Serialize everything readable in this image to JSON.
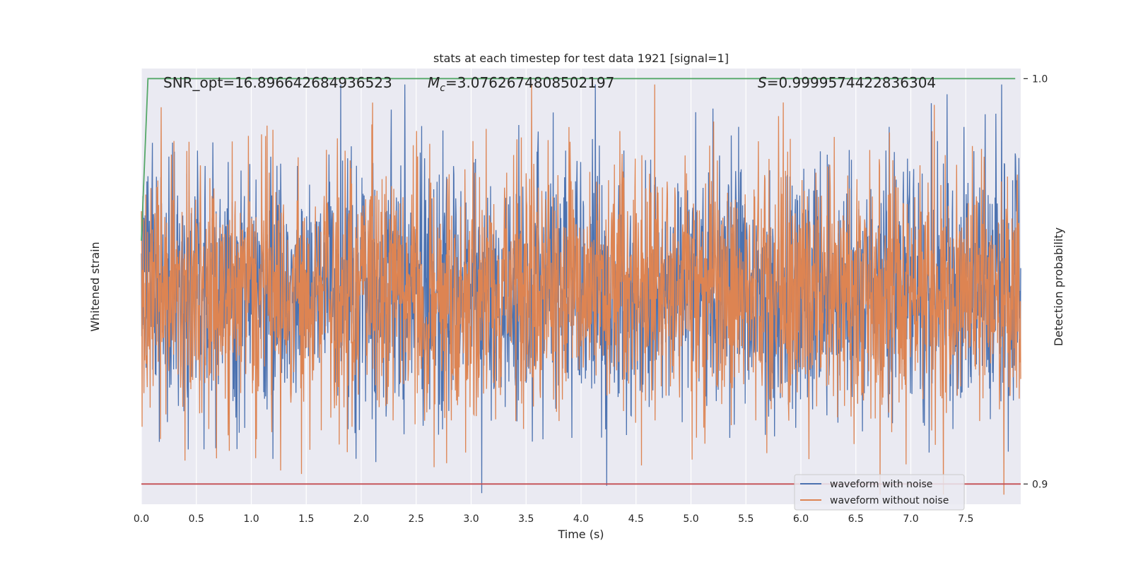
{
  "chart_data": {
    "type": "line",
    "title": "stats at each timestep for test data 1921 [signal=1]",
    "xlabel": "Time (s)",
    "ylabel_left": "Whitened strain",
    "ylabel_right": "Detection probability",
    "xlim": [
      0.0,
      8.0
    ],
    "xticks": [
      0.0,
      0.5,
      1.0,
      1.5,
      2.0,
      2.5,
      3.0,
      3.5,
      4.0,
      4.5,
      5.0,
      5.5,
      6.0,
      6.5,
      7.0,
      7.5
    ],
    "xtick_labels": [
      "0.0",
      "0.5",
      "1.0",
      "1.5",
      "2.0",
      "2.5",
      "3.0",
      "3.5",
      "4.0",
      "4.5",
      "5.0",
      "5.5",
      "6.0",
      "6.5",
      "7.0",
      "7.5"
    ],
    "ylim_right": [
      0.895,
      1.0025
    ],
    "yticks_right": [
      0.9,
      1.0
    ],
    "ytick_labels_right": [
      "0.9",
      "1.0"
    ],
    "grid": true,
    "legend_position": "lower-right",
    "annotations": {
      "snr": "SNR_opt=16.896642684936523",
      "mc_symbol": "M",
      "mc_sub": "c",
      "mc_value": "=3.0762674808502197",
      "s_symbol": "S",
      "s_value": "=0.9999574422836304"
    },
    "series": [
      {
        "name": "waveform with noise",
        "color": "#4c72b0",
        "axis": "left",
        "noise_amplitude": 1.0
      },
      {
        "name": "waveform without noise",
        "color": "#dd8452",
        "axis": "left",
        "noise_amplitude": 1.0
      },
      {
        "color": "#55a868",
        "axis": "right",
        "x": [
          0.0,
          0.06,
          7.95
        ],
        "y": [
          0.96,
          1.0,
          1.0
        ]
      },
      {
        "color": "#c44e52",
        "axis": "right",
        "x": [
          0.0,
          8.0
        ],
        "y": [
          0.9,
          0.9
        ]
      }
    ],
    "colors": {
      "plot_background": "#eaeaf2",
      "grid": "#ffffff",
      "text": "#262626"
    }
  }
}
